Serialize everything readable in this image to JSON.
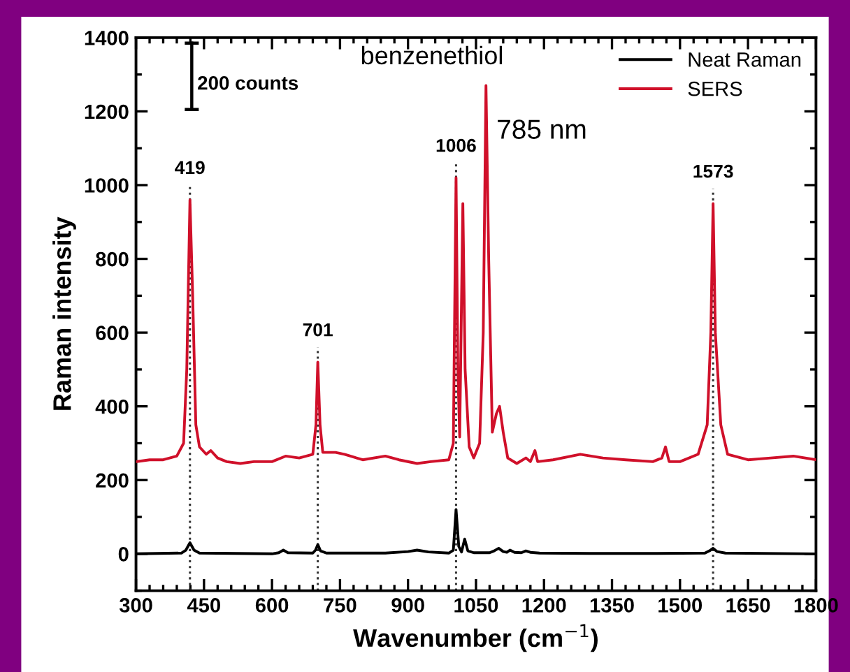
{
  "chart_data": {
    "type": "line",
    "xlabel": "Wavenumber (cm$^{−1}$)",
    "ylabel": "Raman intensity",
    "xlim": [
      300,
      1800
    ],
    "xticks": [
      300,
      450,
      600,
      750,
      900,
      1050,
      1200,
      1350,
      1500,
      1650,
      1800
    ],
    "ylim": [
      -100,
      1400
    ],
    "yticks": [
      0,
      200,
      400,
      600,
      800,
      1000,
      1200,
      1400
    ],
    "grid": false,
    "legend": "top right",
    "marker": "none",
    "line_style": "solid",
    "annotations": [
      "benzenethiol",
      "785 nm",
      "200 counts"
    ],
    "ref_lines": [
      {
        "axis": "x",
        "value": 419,
        "label": "419",
        "line_style": "dotted",
        "color": "#333333"
      },
      {
        "axis": "x",
        "value": 701,
        "label": "701",
        "line_style": "dotted",
        "color": "#333333"
      },
      {
        "axis": "x",
        "value": 1006,
        "label": "1006",
        "line_style": "dotted",
        "color": "#333333"
      },
      {
        "axis": "x",
        "value": 1573,
        "label": "1573",
        "line_style": "dotted",
        "color": "#333333"
      }
    ],
    "series": [
      {
        "name": "Neat Raman",
        "color": "#000000",
        "x": [
          300,
          400,
          410,
          419,
          428,
          440,
          600,
          615,
          625,
          635,
          690,
          696,
          701,
          707,
          720,
          850,
          900,
          920,
          945,
          990,
          1000,
          1006,
          1012,
          1018,
          1025,
          1032,
          1045,
          1080,
          1090,
          1100,
          1110,
          1118,
          1125,
          1135,
          1150,
          1160,
          1170,
          1190,
          1300,
          1450,
          1555,
          1565,
          1573,
          1582,
          1600,
          1800
        ],
        "values": [
          0,
          2,
          10,
          30,
          10,
          2,
          0,
          3,
          10,
          3,
          2,
          10,
          25,
          8,
          2,
          2,
          6,
          10,
          5,
          2,
          10,
          120,
          20,
          5,
          40,
          8,
          3,
          3,
          8,
          15,
          6,
          4,
          10,
          4,
          3,
          8,
          4,
          2,
          1,
          1,
          2,
          8,
          15,
          6,
          2,
          0
        ]
      },
      {
        "name": "SERS",
        "color": "#d0102a",
        "x": [
          300,
          330,
          360,
          390,
          405,
          412,
          419,
          425,
          432,
          440,
          455,
          465,
          480,
          500,
          530,
          560,
          600,
          630,
          660,
          690,
          697,
          701,
          706,
          712,
          740,
          760,
          800,
          850,
          880,
          920,
          950,
          990,
          1000,
          1006,
          1010,
          1014,
          1021,
          1026,
          1035,
          1045,
          1058,
          1066,
          1072,
          1078,
          1086,
          1095,
          1102,
          1110,
          1120,
          1140,
          1160,
          1170,
          1180,
          1186,
          1220,
          1280,
          1330,
          1380,
          1440,
          1460,
          1468,
          1476,
          1500,
          1540,
          1560,
          1568,
          1573,
          1578,
          1590,
          1605,
          1650,
          1700,
          1750,
          1800
        ],
        "values": [
          250,
          255,
          255,
          265,
          300,
          500,
          960,
          700,
          350,
          290,
          270,
          280,
          260,
          250,
          245,
          250,
          250,
          265,
          260,
          270,
          350,
          520,
          350,
          275,
          275,
          270,
          255,
          265,
          255,
          245,
          250,
          255,
          300,
          1020,
          500,
          317,
          950,
          500,
          290,
          260,
          300,
          600,
          1270,
          800,
          330,
          380,
          400,
          330,
          260,
          245,
          260,
          250,
          280,
          250,
          255,
          270,
          260,
          255,
          250,
          260,
          290,
          250,
          250,
          270,
          350,
          600,
          950,
          600,
          350,
          270,
          255,
          260,
          265,
          255
        ]
      }
    ]
  }
}
